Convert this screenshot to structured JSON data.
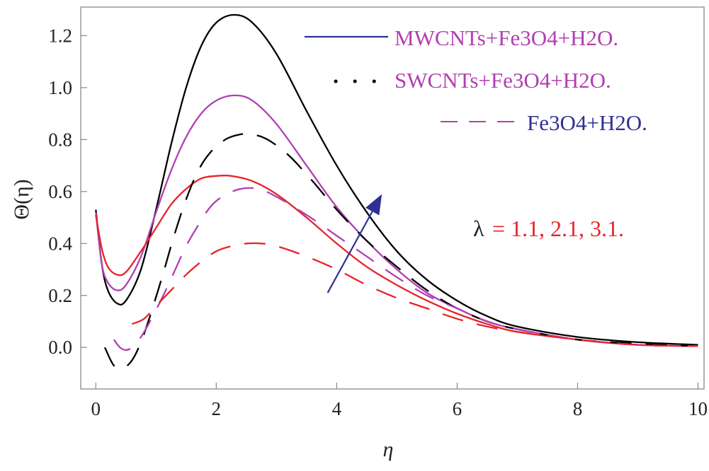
{
  "chart_data": {
    "type": "line",
    "title": "",
    "xlabel": "η",
    "ylabel": "Θ(η)",
    "xlim": [
      -0.25,
      10.1
    ],
    "ylim": [
      -0.16,
      1.31
    ],
    "xticks": [
      "0",
      "2",
      "4",
      "6",
      "8",
      "10"
    ],
    "xtick_values": [
      0,
      2,
      4,
      6,
      8,
      10
    ],
    "yticks": [
      "0.0",
      "0.2",
      "0.4",
      "0.6",
      "0.8",
      "1.0",
      "1.2"
    ],
    "ytick_values": [
      0,
      0.2,
      0.4,
      0.6,
      0.8,
      1.0,
      1.2
    ],
    "legend": [
      {
        "label": "MWCNTs+Fe3O4+H2O.",
        "style": "solid"
      },
      {
        "label": "SWCNTs+Fe3O4+H2O.",
        "style": "dotted"
      },
      {
        "label": "Fe3O4+H2O.",
        "style": "dashed"
      }
    ],
    "annotation": {
      "param": "λ",
      "values": "= 1.1, 2.1, 3.1."
    },
    "arrow": {
      "from": [
        3.85,
        0.21
      ],
      "to": [
        4.75,
        0.59
      ]
    },
    "series": [
      {
        "name": "black-solid",
        "color": "#000000",
        "dash": "solid",
        "x": [
          0,
          0.1,
          0.2,
          0.35,
          0.5,
          0.75,
          1,
          1.25,
          1.5,
          1.75,
          2,
          2.3,
          2.6,
          3,
          3.5,
          4,
          4.5,
          5,
          5.5,
          6,
          6.5,
          7,
          8,
          9,
          10
        ],
        "y": [
          0.53,
          0.32,
          0.22,
          0.17,
          0.18,
          0.3,
          0.53,
          0.78,
          1.0,
          1.16,
          1.25,
          1.28,
          1.25,
          1.13,
          0.91,
          0.7,
          0.52,
          0.37,
          0.26,
          0.18,
          0.12,
          0.08,
          0.04,
          0.02,
          0.01
        ]
      },
      {
        "name": "magenta-solid",
        "color": "#b13fb1",
        "dash": "solid",
        "x": [
          0,
          0.1,
          0.2,
          0.35,
          0.5,
          0.75,
          1,
          1.25,
          1.5,
          1.75,
          2,
          2.3,
          2.6,
          3,
          3.5,
          4,
          4.5,
          5,
          5.5,
          6,
          6.5,
          7,
          8,
          9,
          10
        ],
        "y": [
          0.52,
          0.32,
          0.25,
          0.22,
          0.24,
          0.35,
          0.52,
          0.68,
          0.81,
          0.9,
          0.95,
          0.97,
          0.95,
          0.86,
          0.7,
          0.54,
          0.41,
          0.3,
          0.21,
          0.15,
          0.1,
          0.07,
          0.03,
          0.01,
          0.005
        ]
      },
      {
        "name": "red-solid",
        "color": "#e8232a",
        "dash": "solid",
        "x": [
          0,
          0.1,
          0.2,
          0.35,
          0.5,
          0.75,
          1,
          1.25,
          1.5,
          1.75,
          2,
          2.25,
          2.6,
          3,
          3.5,
          4,
          4.5,
          5,
          5.5,
          6,
          6.5,
          7,
          8,
          9,
          10
        ],
        "y": [
          0.51,
          0.38,
          0.31,
          0.28,
          0.29,
          0.37,
          0.46,
          0.55,
          0.61,
          0.65,
          0.66,
          0.66,
          0.64,
          0.59,
          0.5,
          0.4,
          0.31,
          0.24,
          0.18,
          0.13,
          0.09,
          0.06,
          0.03,
          0.01,
          0.005
        ]
      },
      {
        "name": "black-dashed",
        "color": "#000000",
        "dash": "dashed",
        "x": [
          0.15,
          0.3,
          0.45,
          0.6,
          0.75,
          0.9,
          1.1,
          1.3,
          1.5,
          1.7,
          1.9,
          2.15,
          2.4,
          2.6,
          2.85,
          3.2,
          3.6,
          4,
          4.5,
          5,
          5.5,
          6,
          6.5,
          7,
          8,
          9,
          10
        ],
        "y": [
          0.0,
          -0.07,
          -0.08,
          -0.05,
          0.02,
          0.12,
          0.27,
          0.43,
          0.57,
          0.68,
          0.75,
          0.8,
          0.82,
          0.82,
          0.8,
          0.74,
          0.64,
          0.53,
          0.41,
          0.31,
          0.22,
          0.15,
          0.1,
          0.07,
          0.03,
          0.015,
          0.005
        ]
      },
      {
        "name": "magenta-dashed",
        "color": "#b13fb1",
        "dash": "dashed",
        "x": [
          0.3,
          0.4,
          0.5,
          0.6,
          0.75,
          0.9,
          1.1,
          1.3,
          1.5,
          1.7,
          1.9,
          2.1,
          2.4,
          2.7,
          3,
          3.5,
          4,
          4.5,
          5,
          5.5,
          6,
          6.5,
          7,
          8,
          9,
          10
        ],
        "y": [
          0.03,
          0.0,
          -0.01,
          0.0,
          0.04,
          0.1,
          0.19,
          0.29,
          0.39,
          0.47,
          0.54,
          0.58,
          0.61,
          0.61,
          0.58,
          0.51,
          0.43,
          0.35,
          0.27,
          0.2,
          0.15,
          0.1,
          0.07,
          0.03,
          0.01,
          0.005
        ]
      },
      {
        "name": "red-dashed",
        "color": "#e8232a",
        "dash": "dashed",
        "x": [
          0.6,
          0.8,
          1.0,
          1.25,
          1.5,
          1.75,
          2.0,
          2.25,
          2.5,
          2.75,
          3.0,
          3.5,
          4,
          4.5,
          5,
          5.5,
          6,
          6.5,
          7,
          8,
          9,
          10
        ],
        "y": [
          0.09,
          0.11,
          0.16,
          0.22,
          0.28,
          0.33,
          0.37,
          0.39,
          0.4,
          0.4,
          0.39,
          0.35,
          0.3,
          0.24,
          0.19,
          0.15,
          0.11,
          0.08,
          0.06,
          0.03,
          0.01,
          0.005
        ]
      }
    ]
  },
  "colors": {
    "black": "#000000",
    "magenta": "#b13fb1",
    "red": "#e8232a",
    "blue": "#2e3192"
  }
}
